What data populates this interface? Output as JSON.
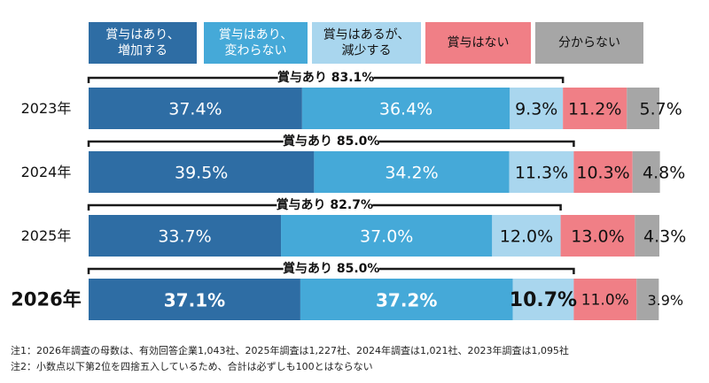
{
  "chart_data": {
    "type": "bar",
    "orientation": "horizontal-stacked-100",
    "categories": [
      "2023年",
      "2024年",
      "2025年",
      "2026年"
    ],
    "series": [
      {
        "name": "賞与はあり、\n増加する",
        "values": [
          37.4,
          39.5,
          33.7,
          37.1
        ],
        "color": "#2e6da4"
      },
      {
        "name": "賞与はあり、\n変わらない",
        "values": [
          36.4,
          34.2,
          37.0,
          37.2
        ],
        "color": "#45a9d8"
      },
      {
        "name": "賞与はあるが、\n減少する",
        "values": [
          9.3,
          11.3,
          12.0,
          10.7
        ],
        "color": "#a9d6ee"
      },
      {
        "name": "賞与はない",
        "values": [
          11.2,
          10.3,
          13.0,
          11.0
        ],
        "color": "#f07f86"
      },
      {
        "name": "分からない",
        "values": [
          5.7,
          4.8,
          4.3,
          3.9
        ],
        "color": "#a6a6a6"
      }
    ],
    "value_labels": [
      [
        "37.4%",
        "36.4%",
        "9.3%",
        "11.2%",
        "5.7%"
      ],
      [
        "39.5%",
        "34.2%",
        "11.3%",
        "10.3%",
        "4.8%"
      ],
      [
        "33.7%",
        "37.0%",
        "12.0%",
        "13.0%",
        "4.3%"
      ],
      [
        "37.1%",
        "37.2%",
        "10.7%",
        "11.0%",
        "3.9%"
      ]
    ],
    "bracket_labels": [
      "賞与あり 83.1%",
      "賞与あり 85.0%",
      "賞与あり 82.7%",
      "賞与あり 85.0%"
    ],
    "bracket_values": [
      83.1,
      85.0,
      82.7,
      85.0
    ],
    "highlight_category": "2026年",
    "xlim": [
      0,
      100
    ],
    "legend_placement": "top",
    "grid": false
  },
  "notes": [
    "注1：2026年調査の母数は、有効回答企業1,043社、2025年調査は1,227社、2024年調査は1,021社、2023年調査は1,095社",
    "注2：小数点以下第2位を四捨五入しているため、合計は必ずしも100とはならない"
  ]
}
